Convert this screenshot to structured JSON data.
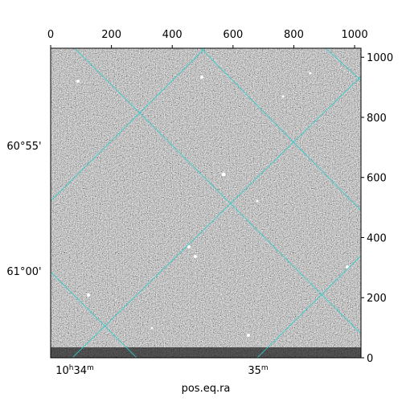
{
  "chart_data": {
    "type": "image",
    "xlabel": "pos.eq.ra",
    "xlim": [
      0,
      1021
    ],
    "xticks": [
      0,
      200,
      400,
      600,
      800,
      1000
    ],
    "ylim": [
      0,
      1030
    ],
    "yticks": [
      0,
      200,
      400,
      600,
      800,
      1000
    ],
    "dec_ticks": [
      "60°55'",
      "61°00'"
    ],
    "ra_ticks": [
      [
        "10",
        "h",
        "34",
        "m"
      ],
      [
        "35",
        "m"
      ]
    ],
    "grid_color": "#33cccc"
  }
}
